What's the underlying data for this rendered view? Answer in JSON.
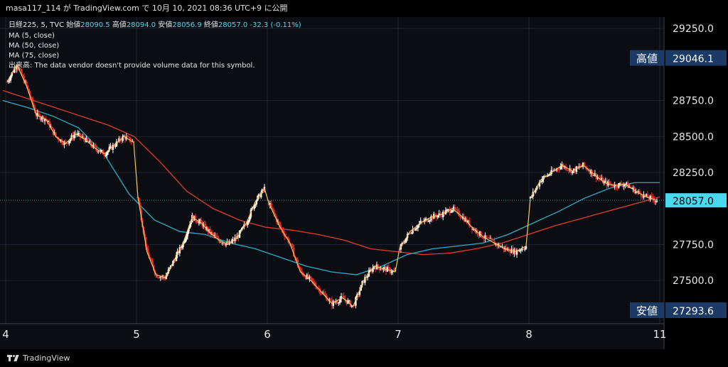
{
  "header": {
    "user": "masa117_114",
    "via": "が TradingView.com で",
    "date": "10月 10, 2021 08:36 UTC+9",
    "published": "に公開"
  },
  "chart_data": {
    "type": "candlestick",
    "symbol_line": {
      "symbol": "日経225, 5, TVC",
      "open_label": "始値",
      "open": "28090.5",
      "high_label": "高値",
      "high": "28094.0",
      "low_label": "安値",
      "low": "28056.9",
      "close_label": "終値",
      "close": "28057.0",
      "change": "-32.3 (-0.11%)"
    },
    "legend": [
      "MA (5, close)",
      "MA (50, close)",
      "MA (75, close)"
    ],
    "volume_note": "出来高: The data vendor doesn't provide volume data for this symbol.",
    "x_ticks": [
      "4",
      "5",
      "6",
      "7",
      "8",
      "11"
    ],
    "y_ticks": [
      "29250.0",
      "28750.0",
      "28500.0",
      "28250.0",
      "27750.0",
      "27500.0"
    ],
    "ylim": [
      27200,
      29330
    ],
    "last_price": "28057.0",
    "high_marker": {
      "label": "高値",
      "value": "29046.1"
    },
    "low_marker": {
      "label": "安値",
      "value": "27293.6"
    },
    "colors": {
      "up": "#ffffff",
      "down": "#ef2a2a",
      "ma5": "#f0c75e",
      "ma50": "#23b0c8",
      "ma75": "#e03b2e",
      "marker_bg": "#1b3a66",
      "last_bg": "#4ad8ee"
    },
    "days": [
      {
        "x": "4",
        "path": [
          28880,
          29000,
          28850,
          28650,
          28620,
          28500,
          28450,
          28520,
          28480,
          28420,
          28380,
          28440,
          28500,
          28460
        ]
      },
      {
        "x": "5",
        "path": [
          28080,
          27700,
          27540,
          27520,
          27640,
          27760,
          27940,
          27900,
          27830,
          27780,
          27750,
          27800,
          27900,
          28050,
          28140
        ]
      },
      {
        "x": "6",
        "path": [
          28040,
          27880,
          27760,
          27560,
          27500,
          27420,
          27340,
          27380,
          27320,
          27500,
          27600,
          27580,
          27560
        ]
      },
      {
        "x": "7",
        "path": [
          27720,
          27840,
          27900,
          27940,
          27960,
          28000,
          27940,
          27860,
          27800,
          27760,
          27720,
          27700,
          27740
        ]
      },
      {
        "x": "8",
        "path": [
          28070,
          28200,
          28250,
          28300,
          28260,
          28300,
          28240,
          28180,
          28160,
          28170,
          28120,
          28080,
          28057
        ]
      }
    ],
    "ma50_path": [
      28750,
      28700,
      28640,
      28560,
      28380,
      28100,
      27920,
      27840,
      27820,
      27760,
      27720,
      27660,
      27600,
      27560,
      27540,
      27600,
      27680,
      27720,
      27740,
      27760,
      27820,
      27900,
      27980,
      28070,
      28140,
      28180,
      28180
    ],
    "ma75_path": [
      28820,
      28760,
      28700,
      28640,
      28580,
      28500,
      28320,
      28120,
      28000,
      27920,
      27870,
      27850,
      27820,
      27780,
      27720,
      27700,
      27680,
      27690,
      27720,
      27760,
      27820,
      27880,
      27930,
      27980,
      28030,
      28080
    ]
  },
  "footer": {
    "brand": "TradingView"
  }
}
